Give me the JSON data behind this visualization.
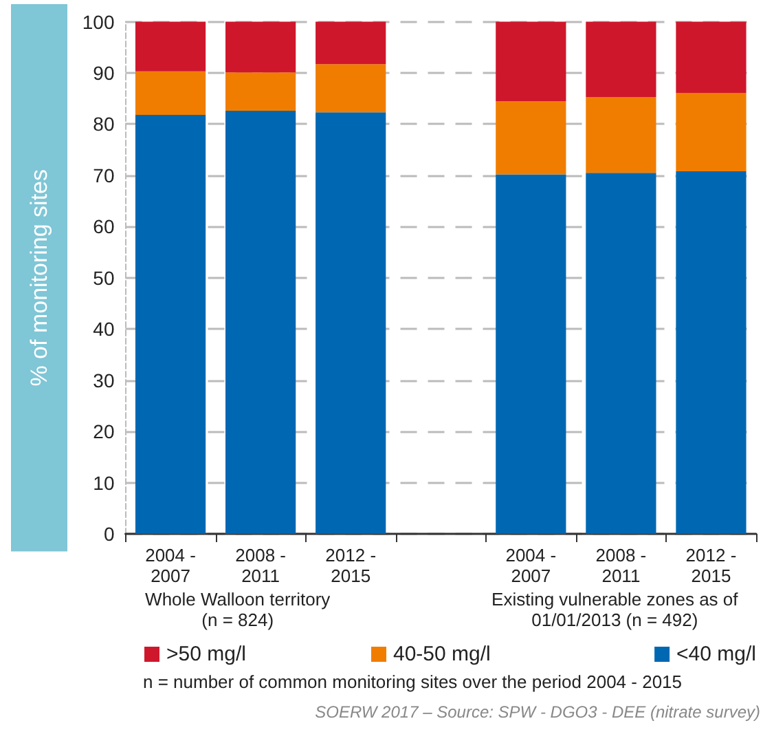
{
  "chart_data": {
    "type": "bar",
    "stacked": true,
    "ylabel": "% of monitoring sites",
    "categories": [
      "2004 -\n2007",
      "2008 -\n2011",
      "2012 -\n2015",
      null,
      "2004 -\n2007",
      "2008 -\n2011",
      "2012 -\n2015"
    ],
    "series": [
      {
        "name": "<40 mg/l",
        "color": "#0068b3",
        "values": [
          81.8,
          82.6,
          82.3,
          null,
          70.2,
          70.5,
          70.8
        ]
      },
      {
        "name": "40-50 mg/l",
        "color": "#f07d00",
        "values": [
          8.5,
          7.5,
          9.4,
          null,
          14.3,
          14.8,
          15.3
        ]
      },
      {
        "name": ">50 mg/l",
        "color": "#cf172c",
        "values": [
          9.7,
          9.9,
          8.3,
          null,
          15.5,
          14.7,
          13.9
        ]
      }
    ],
    "ylim": [
      0,
      100
    ],
    "yticks": [
      0,
      10,
      20,
      30,
      40,
      50,
      60,
      70,
      80,
      90,
      100
    ],
    "grid": "y",
    "legend": "bottom",
    "annotations": [
      "Whole Walloon territory\n(n = 824)",
      "Existing vulnerable zones as of\n01/01/2013 (n = 492)",
      "n = number of common monitoring sites over the period 2004 - 2015",
      "SOERW 2017 – Source: SPW - DGO3 - DEE (nitrate survey)"
    ]
  }
}
